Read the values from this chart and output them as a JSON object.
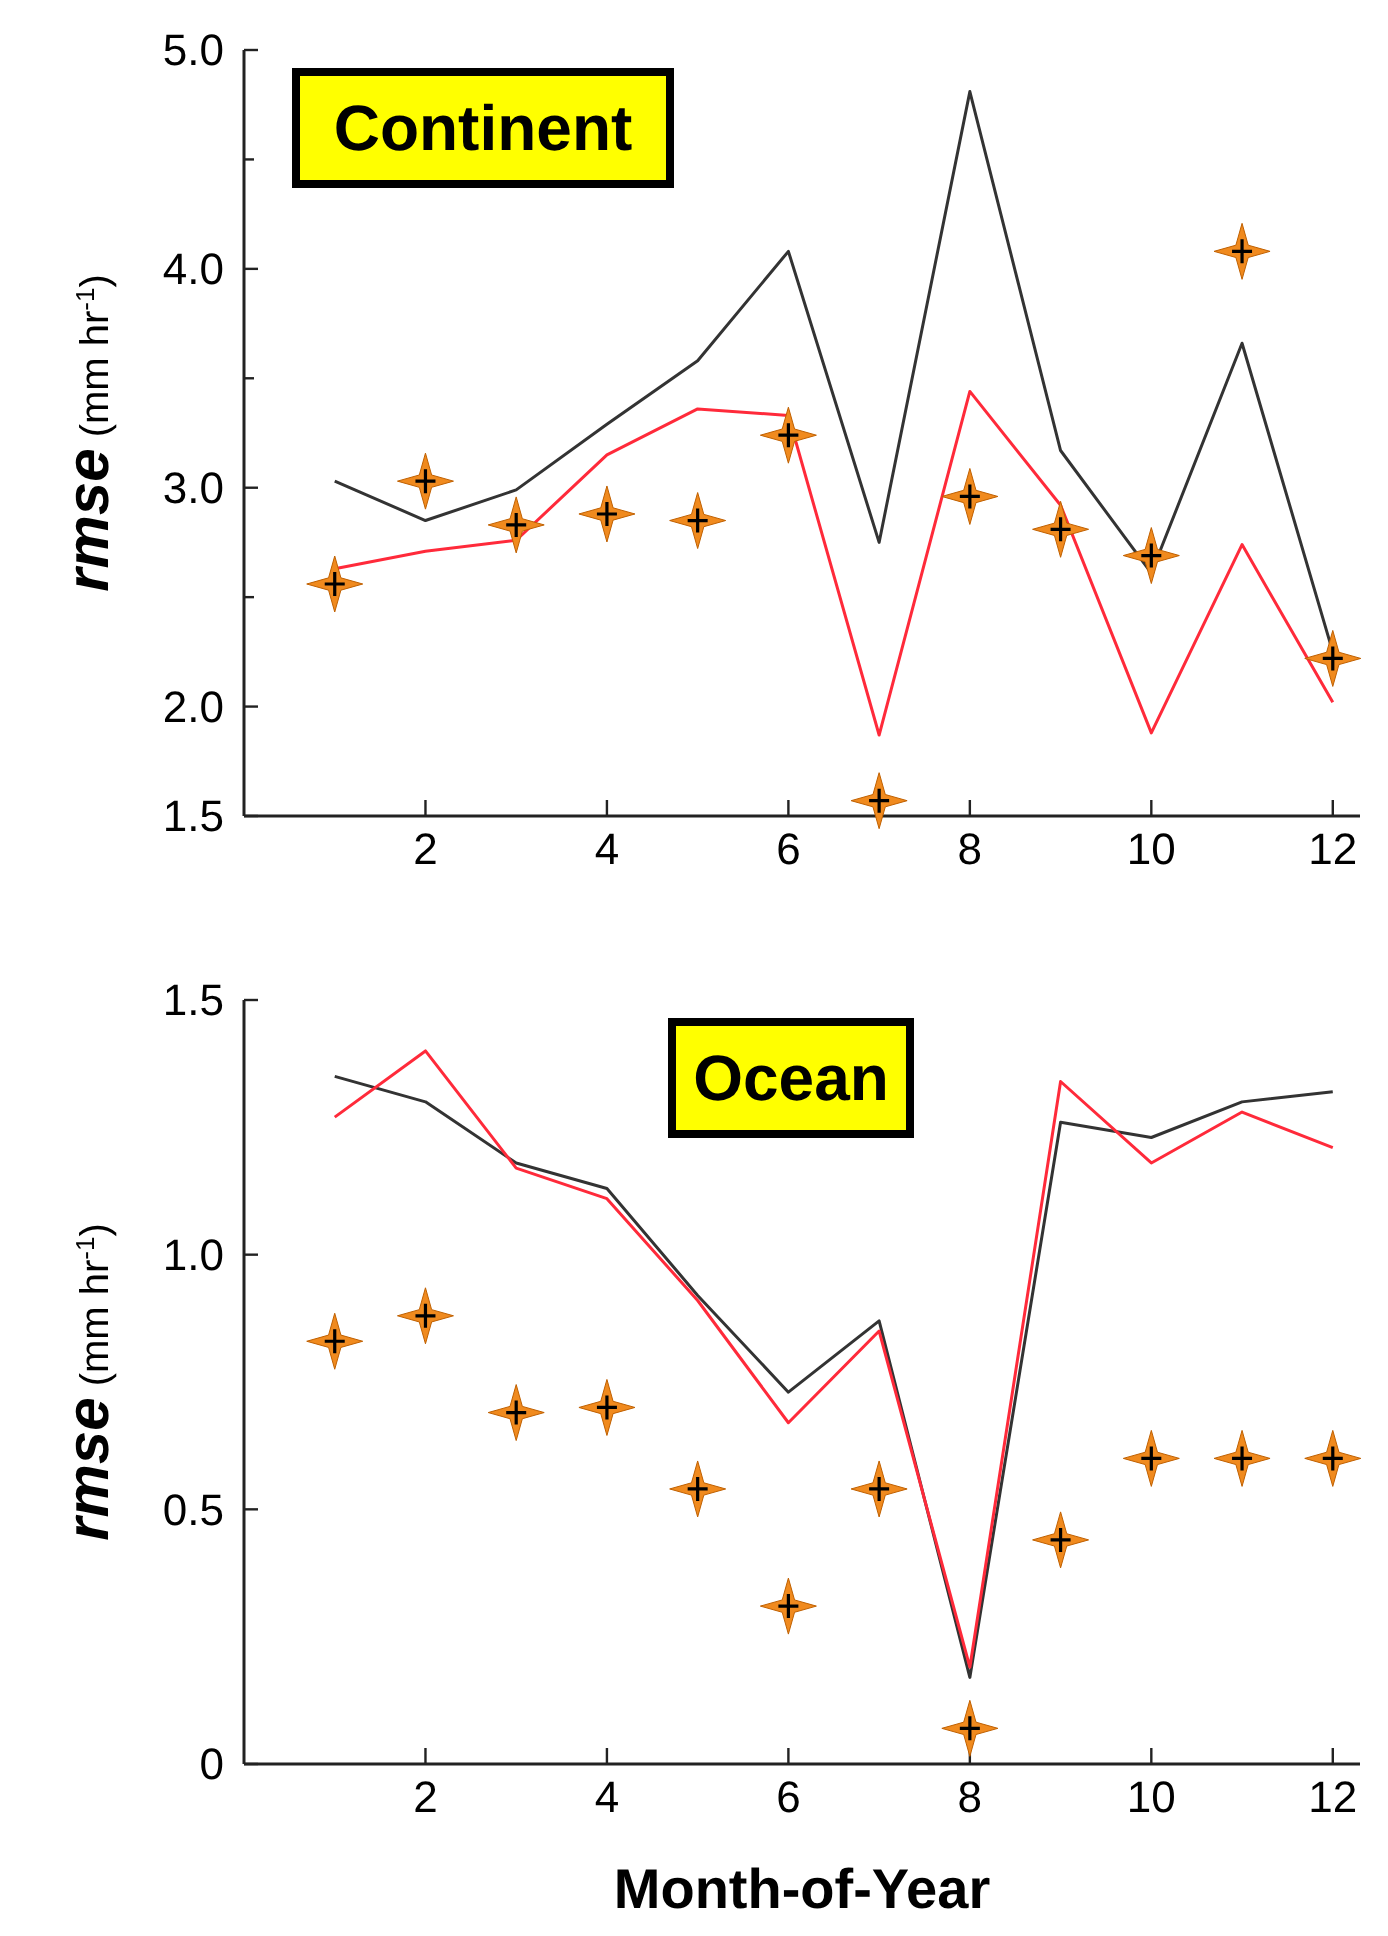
{
  "chart_data": [
    {
      "type": "line",
      "title": "Continent",
      "ylabel": "rmse (mm hr$^{-1}$)",
      "x": [
        1,
        2,
        3,
        4,
        5,
        6,
        7,
        8,
        9,
        10,
        11,
        12
      ],
      "xlim": [
        0,
        12.3
      ],
      "xticks": [
        2,
        4,
        6,
        8,
        10,
        12
      ],
      "ylim": [
        1.5,
        5.0
      ],
      "yticks": [
        1.5,
        {
          "value": 2,
          "label": "2.0"
        },
        {
          "value": 2.5,
          "label": null
        },
        {
          "value": 3,
          "label": "3.0"
        },
        {
          "value": 3.5,
          "label": null
        },
        {
          "value": 4,
          "label": "4.0"
        },
        {
          "value": 4.5,
          "label": null
        },
        {
          "value": 5,
          "label": "5.0"
        }
      ],
      "series": [
        {
          "color": "#333333",
          "values": [
            3.03,
            2.85,
            2.99,
            3.29,
            3.58,
            4.08,
            2.75,
            4.81,
            3.17,
            2.61,
            3.66,
            2.25
          ]
        },
        {
          "color": "#ff2a3a",
          "values": [
            2.63,
            2.71,
            2.76,
            3.15,
            3.36,
            3.33,
            1.87,
            3.44,
            2.92,
            1.88,
            2.74,
            2.02
          ]
        },
        {
          "type": "scatter",
          "color": "#f08a1e",
          "marker": "star",
          "values": [
            2.56,
            3.03,
            2.83,
            2.88,
            2.85,
            3.24,
            1.57,
            2.96,
            2.81,
            2.69,
            4.08,
            2.22
          ]
        }
      ]
    },
    {
      "type": "line",
      "title": "Ocean",
      "ylabel": "rmse (mm hr$^{-1}$)",
      "xlabel": "Month-of-Year",
      "x": [
        1,
        2,
        3,
        4,
        5,
        6,
        7,
        8,
        9,
        10,
        11,
        12
      ],
      "xlim": [
        0,
        12.3
      ],
      "xticks": [
        2,
        4,
        6,
        8,
        10,
        12
      ],
      "ylim": [
        0,
        1.5
      ],
      "yticks": [
        0,
        0.5,
        {
          "value": 1,
          "label": "1.0"
        },
        1.5
      ],
      "series": [
        {
          "color": "#333333",
          "values": [
            1.35,
            1.3,
            1.18,
            1.13,
            0.92,
            0.73,
            0.87,
            0.17,
            1.26,
            1.23,
            1.3,
            1.32
          ]
        },
        {
          "color": "#ff2a3a",
          "values": [
            1.27,
            1.4,
            1.17,
            1.11,
            0.91,
            0.67,
            0.85,
            0.19,
            1.34,
            1.18,
            1.28,
            1.21
          ]
        },
        {
          "type": "scatter",
          "color": "#f08a1e",
          "marker": "star",
          "values": [
            0.83,
            0.88,
            0.69,
            0.7,
            0.54,
            0.31,
            0.54,
            0.07,
            0.44,
            0.6,
            0.6,
            0.6
          ]
        }
      ]
    }
  ]
}
